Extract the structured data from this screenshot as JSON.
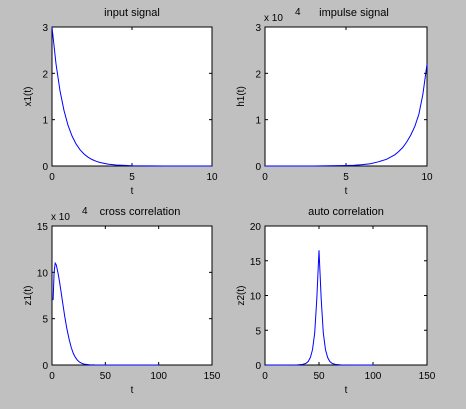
{
  "chart_data": [
    {
      "type": "line",
      "title": "input signal",
      "xlabel": "t",
      "ylabel": "x1(t)",
      "exponent_label": "",
      "xlim": [
        0,
        10
      ],
      "ylim": [
        0,
        3
      ],
      "xticks": [
        0,
        5,
        10
      ],
      "yticks": [
        0,
        1,
        2,
        3
      ],
      "color": "#0000ff",
      "series": [
        {
          "x": [
            0,
            0.25,
            0.5,
            0.75,
            1,
            1.25,
            1.5,
            1.75,
            2,
            2.25,
            2.5,
            2.75,
            3,
            3.5,
            4,
            5,
            6,
            7,
            8,
            9,
            10
          ],
          "values": [
            3,
            2.205,
            1.624,
            1.197,
            0.881,
            0.649,
            0.478,
            0.352,
            0.259,
            0.191,
            0.141,
            0.104,
            0.076,
            0.041,
            0.022,
            0.006,
            0.002,
            0.0005,
            0.0001,
            0,
            0
          ]
        }
      ]
    },
    {
      "type": "line",
      "title": "impulse signal",
      "xlabel": "t",
      "ylabel": "h1(t)",
      "exponent_label": "x 10",
      "exponent_power": "4",
      "xlim": [
        0,
        10
      ],
      "ylim": [
        0,
        3
      ],
      "xticks": [
        0,
        5,
        10
      ],
      "yticks": [
        0,
        1,
        2,
        3
      ],
      "color": "#0000ff",
      "series": [
        {
          "x": [
            0,
            1,
            2,
            3,
            4,
            5,
            5.5,
            6,
            6.5,
            7,
            7.5,
            8,
            8.25,
            8.5,
            8.75,
            9,
            9.25,
            9.5,
            9.75,
            10
          ],
          "values": [
            5e-05,
            0.0001,
            0.0004,
            0.001,
            0.004,
            0.01,
            0.018,
            0.03,
            0.05,
            0.09,
            0.145,
            0.24,
            0.31,
            0.4,
            0.52,
            0.67,
            0.86,
            1.12,
            1.55,
            2.2
          ]
        }
      ]
    },
    {
      "type": "line",
      "title": "cross correlation",
      "xlabel": "t",
      "ylabel": "z1(t)",
      "exponent_label": "x 10",
      "exponent_power": "4",
      "xlim": [
        0,
        150
      ],
      "ylim": [
        0,
        15
      ],
      "xticks": [
        0,
        50,
        100,
        150
      ],
      "yticks": [
        0,
        5,
        10,
        15
      ],
      "color": "#0000ff",
      "series": [
        {
          "x": [
            1,
            2,
            3,
            4,
            5,
            6,
            7,
            8,
            10,
            12,
            14,
            16,
            18,
            20,
            22,
            24,
            26,
            28,
            30,
            35,
            40,
            50,
            60,
            80,
            100
          ],
          "values": [
            7,
            10,
            11,
            10.8,
            10.3,
            9.7,
            9,
            8.3,
            6.7,
            5.2,
            3.9,
            2.8,
            1.9,
            1.25,
            0.8,
            0.5,
            0.3,
            0.18,
            0.1,
            0.03,
            0.01,
            0,
            0,
            0,
            0
          ]
        }
      ]
    },
    {
      "type": "line",
      "title": "auto correlation",
      "xlabel": "t",
      "ylabel": "z2(t)",
      "exponent_label": "",
      "xlim": [
        0,
        150
      ],
      "ylim": [
        0,
        20
      ],
      "xticks": [
        0,
        50,
        100,
        150
      ],
      "yticks": [
        0,
        5,
        10,
        15,
        20
      ],
      "color": "#0000ff",
      "series": [
        {
          "x": [
            1,
            10,
            20,
            30,
            35,
            38,
            40,
            42,
            44,
            46,
            48,
            50,
            52,
            54,
            56,
            58,
            60,
            62,
            65,
            70,
            80,
            90,
            101
          ],
          "values": [
            0,
            0,
            0,
            0.02,
            0.08,
            0.25,
            0.5,
            1.1,
            2.2,
            4.6,
            9.5,
            16.5,
            9.5,
            4.6,
            2.2,
            1.1,
            0.5,
            0.25,
            0.08,
            0.02,
            0,
            0,
            0
          ]
        }
      ]
    }
  ]
}
